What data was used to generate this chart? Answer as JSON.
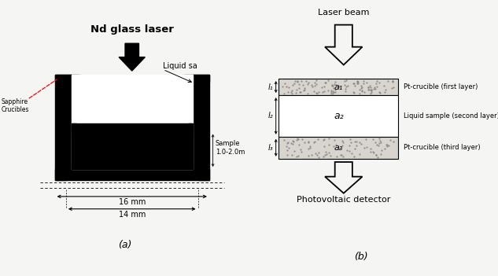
{
  "fig_width": 6.33,
  "fig_height": 3.51,
  "dpi": 100,
  "bg_color": "#f5f5f3",
  "panel_a": {
    "laser_label": "Nd glass laser",
    "sapphire_label": "Sapphire\nCrucibles",
    "liquid_label": "Liquid sa",
    "sample_label": "Sample\n1.0-2.0m",
    "dim1_label": "16 mm",
    "dim2_label": "14 mm",
    "label_a": "(a)"
  },
  "panel_b": {
    "laser_label": "Laser beam",
    "layer1_label": "Pt-crucible (first layer)",
    "layer2_label": "Liquid sample (second layer)",
    "layer3_label": "Pt-crucible (third layer)",
    "a1_label": "a₁",
    "a2_label": "a₂",
    "a3_label": "a₃",
    "l1_label": "l₁",
    "l2_label": "l₂",
    "l3_label": "l₃",
    "detector_label": "Photovoltaic detector",
    "label_b": "(b)"
  }
}
